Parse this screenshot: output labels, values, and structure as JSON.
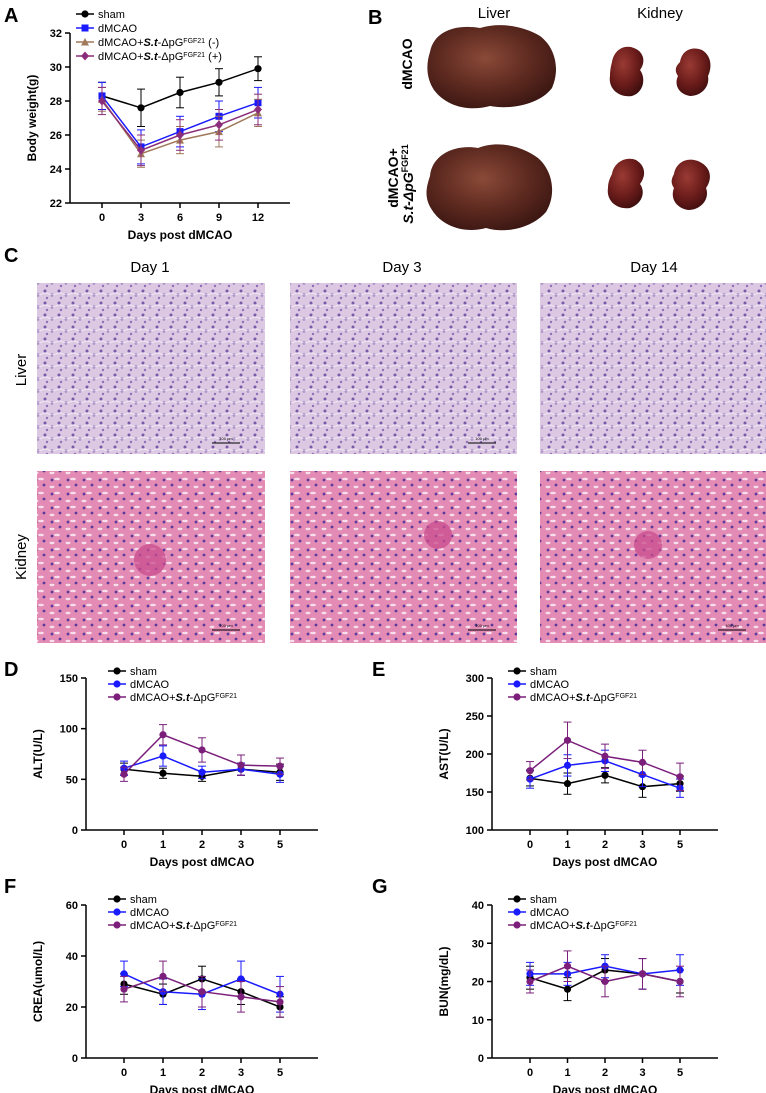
{
  "panels": {
    "a": "A",
    "b": "B",
    "c": "C",
    "d": "D",
    "e": "E",
    "f": "F",
    "g": "G"
  },
  "colors": {
    "sham": "#000000",
    "dmcao": "#1a1aff",
    "dmcao_neg": "#a0785a",
    "dmcao_pos": "#8b2d7a",
    "dmcao_fgf21": "#7b1f7b"
  },
  "photo_panel": {
    "col_liver": "Liver",
    "col_kidney": "Kidney",
    "row1": "dMCAO",
    "row2_line1": "dMCAO+",
    "row2_line2_prefix": "S.t-ΔpG",
    "row2_sup": "FGF21"
  },
  "histology_panel": {
    "columns": [
      "Day 1",
      "Day 3",
      "Day 14"
    ],
    "rows": [
      "Liver",
      "Kidney"
    ],
    "scale_bar": "100 μm"
  },
  "chart_data": [
    {
      "id": "A",
      "type": "line",
      "ylabel": "Body weight(g)",
      "xlabel": "Days  post dMCAO",
      "x": [
        0,
        3,
        6,
        9,
        12
      ],
      "xticks": [
        "0",
        "3",
        "6",
        "9",
        "12"
      ],
      "ylim": [
        22,
        32
      ],
      "yticks": [
        "22",
        "24",
        "26",
        "28",
        "30",
        "32"
      ],
      "legend_position": "top-left",
      "series": [
        {
          "name": "sham",
          "marker": "circle",
          "values": [
            28.3,
            27.6,
            28.5,
            29.1,
            29.9
          ],
          "err": [
            0.8,
            1.1,
            0.9,
            0.8,
            0.7
          ]
        },
        {
          "name": "dMCAO",
          "marker": "square",
          "values": [
            28.3,
            25.3,
            26.2,
            27.1,
            27.9
          ],
          "err": [
            0.8,
            1.0,
            0.9,
            0.9,
            0.9
          ]
        },
        {
          "name": "dMCAO+S.t-ΔpGFGF21 (-)",
          "marker": "triangle",
          "values": [
            28.1,
            24.9,
            25.7,
            26.2,
            27.3
          ],
          "err": [
            0.7,
            0.8,
            0.8,
            0.9,
            0.8
          ]
        },
        {
          "name": "dMCAO+S.t-ΔpGFGF21 (+)",
          "marker": "diamond",
          "values": [
            28.0,
            25.1,
            26.0,
            26.6,
            27.5
          ],
          "err": [
            0.8,
            0.9,
            0.9,
            0.9,
            0.9
          ]
        }
      ],
      "legend": [
        {
          "prefix": "sham",
          "italic": "",
          "mid": "",
          "sup": "",
          "suffix": ""
        },
        {
          "prefix": "dMCAO",
          "italic": "",
          "mid": "",
          "sup": "",
          "suffix": ""
        },
        {
          "prefix": "dMCAO+",
          "italic": "S.t",
          "mid": "-ΔpG",
          "sup": "FGF21",
          "suffix": " (-)"
        },
        {
          "prefix": "dMCAO+",
          "italic": "S.t",
          "mid": "-ΔpG",
          "sup": "FGF21",
          "suffix": " (+)"
        }
      ]
    },
    {
      "id": "D",
      "type": "line",
      "ylabel": "ALT(U/L)",
      "xlabel": "Days  post dMCAO",
      "x": [
        0,
        1,
        2,
        3,
        5
      ],
      "xticks": [
        "0",
        "1",
        "2",
        "3",
        "5"
      ],
      "ylim": [
        0,
        150
      ],
      "yticks": [
        "0",
        "50",
        "100",
        "150"
      ],
      "legend_position": "top-left",
      "series": [
        {
          "name": "sham",
          "values": [
            60,
            56,
            53,
            60,
            57
          ],
          "err": [
            6,
            5,
            5,
            6,
            8
          ]
        },
        {
          "name": "dMCAO",
          "values": [
            61,
            73,
            57,
            60,
            55
          ],
          "err": [
            7,
            10,
            6,
            6,
            8
          ]
        },
        {
          "name": "dMCAO+S.t-ΔpGFGF21",
          "values": [
            55,
            94,
            79,
            64,
            63
          ],
          "err": [
            7,
            10,
            12,
            10,
            8
          ]
        }
      ],
      "legend": [
        {
          "prefix": "sham",
          "italic": "",
          "mid": "",
          "sup": "",
          "suffix": ""
        },
        {
          "prefix": "dMCAO",
          "italic": "",
          "mid": "",
          "sup": "",
          "suffix": ""
        },
        {
          "prefix": "dMCAO+",
          "italic": "S.t",
          "mid": "-ΔpG",
          "sup": "FGF21",
          "suffix": ""
        }
      ]
    },
    {
      "id": "E",
      "type": "line",
      "ylabel": "AST(U/L)",
      "xlabel": "Days  post dMCAO",
      "x": [
        0,
        1,
        2,
        3,
        5
      ],
      "xticks": [
        "0",
        "1",
        "2",
        "3",
        "5"
      ],
      "ylim": [
        100,
        300
      ],
      "yticks": [
        "100",
        "150",
        "200",
        "250",
        "300"
      ],
      "legend_position": "top-left",
      "series": [
        {
          "name": "sham",
          "values": [
            168,
            161,
            172,
            157,
            161
          ],
          "err": [
            10,
            14,
            10,
            14,
            10
          ]
        },
        {
          "name": "dMCAO",
          "values": [
            167,
            185,
            191,
            173,
            155
          ],
          "err": [
            12,
            14,
            14,
            16,
            12
          ]
        },
        {
          "name": "dMCAO+S.t-ΔpGFGF21",
          "values": [
            178,
            218,
            197,
            189,
            170
          ],
          "err": [
            12,
            24,
            16,
            16,
            18
          ]
        }
      ],
      "legend": [
        {
          "prefix": "sham",
          "italic": "",
          "mid": "",
          "sup": "",
          "suffix": ""
        },
        {
          "prefix": "dMCAO",
          "italic": "",
          "mid": "",
          "sup": "",
          "suffix": ""
        },
        {
          "prefix": "dMCAO+",
          "italic": "S.t",
          "mid": "-ΔpG",
          "sup": "FGF21",
          "suffix": ""
        }
      ]
    },
    {
      "id": "F",
      "type": "line",
      "ylabel": "CREA(umol/L)",
      "xlabel": "Days  post dMCAO",
      "x": [
        0,
        1,
        2,
        3,
        5
      ],
      "xticks": [
        "0",
        "1",
        "2",
        "3",
        "5"
      ],
      "ylim": [
        0,
        60
      ],
      "yticks": [
        "0",
        "20",
        "40",
        "60"
      ],
      "legend_position": "top-left",
      "series": [
        {
          "name": "sham",
          "values": [
            29,
            25,
            31,
            26,
            20
          ],
          "err": [
            4,
            4,
            5,
            5,
            4
          ]
        },
        {
          "name": "dMCAO",
          "values": [
            33,
            26,
            25,
            31,
            25
          ],
          "err": [
            5,
            5,
            6,
            7,
            7
          ]
        },
        {
          "name": "dMCAO+S.t-ΔpGFGF21",
          "values": [
            27,
            32,
            26,
            24,
            22
          ],
          "err": [
            5,
            6,
            6,
            6,
            6
          ]
        }
      ],
      "legend": [
        {
          "prefix": "sham",
          "italic": "",
          "mid": "",
          "sup": "",
          "suffix": ""
        },
        {
          "prefix": "dMCAO",
          "italic": "",
          "mid": "",
          "sup": "",
          "suffix": ""
        },
        {
          "prefix": "dMCAO+",
          "italic": "S.t",
          "mid": "-ΔpG",
          "sup": "FGF21",
          "suffix": ""
        }
      ]
    },
    {
      "id": "G",
      "type": "line",
      "ylabel": "BUN(mg/dL)",
      "xlabel": "Days  post dMCAO",
      "x": [
        0,
        1,
        2,
        3,
        5
      ],
      "xticks": [
        "0",
        "1",
        "2",
        "3",
        "5"
      ],
      "ylim": [
        0,
        40
      ],
      "yticks": [
        "0",
        "10",
        "20",
        "30",
        "40"
      ],
      "legend_position": "top-left",
      "series": [
        {
          "name": "sham",
          "values": [
            21,
            18,
            23,
            22,
            20
          ],
          "err": [
            3,
            3,
            3,
            4,
            3
          ]
        },
        {
          "name": "dMCAO",
          "values": [
            22,
            22,
            24,
            22,
            23
          ],
          "err": [
            3,
            3,
            3,
            4,
            4
          ]
        },
        {
          "name": "dMCAO+S.t-ΔpGFGF21",
          "values": [
            20,
            24,
            20,
            22,
            20
          ],
          "err": [
            3,
            4,
            4,
            4,
            4
          ]
        }
      ],
      "legend": [
        {
          "prefix": "sham",
          "italic": "",
          "mid": "",
          "sup": "",
          "suffix": ""
        },
        {
          "prefix": "dMCAO",
          "italic": "",
          "mid": "",
          "sup": "",
          "suffix": ""
        },
        {
          "prefix": "dMCAO+",
          "italic": "S.t",
          "mid": "-ΔpG",
          "sup": "FGF21",
          "suffix": ""
        }
      ]
    }
  ]
}
